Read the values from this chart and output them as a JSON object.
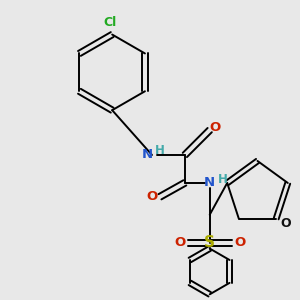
{
  "background_color": "#e8e8e8",
  "fig_width": 3.0,
  "fig_height": 3.0,
  "dpi": 100,
  "bond_lw": 1.4,
  "colors": {
    "bond": "black",
    "N": "#2255cc",
    "O": "#cc2200",
    "S": "#aaaa00",
    "Cl": "#22aa22",
    "H": "#44aaaa",
    "furan_O": "#111111"
  }
}
